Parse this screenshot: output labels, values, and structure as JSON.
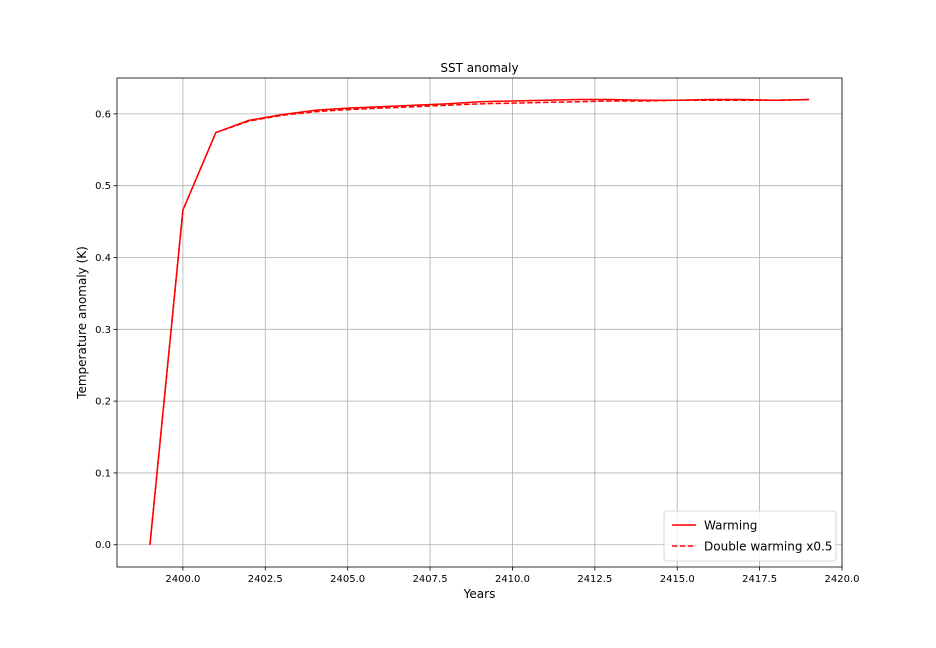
{
  "chart_data": {
    "type": "line",
    "title": "SST anomaly",
    "xlabel": "Years",
    "ylabel": "Temperature anomaly (K)",
    "xlim": [
      2398.0,
      2420.0
    ],
    "ylim": [
      -0.031,
      0.65
    ],
    "xticks": [
      2400.0,
      2402.5,
      2405.0,
      2407.5,
      2410.0,
      2412.5,
      2415.0,
      2417.5,
      2420.0
    ],
    "xtick_labels": [
      "2400.0",
      "2402.5",
      "2405.0",
      "2407.5",
      "2410.0",
      "2412.5",
      "2415.0",
      "2417.5",
      "2420.0"
    ],
    "yticks": [
      0.0,
      0.1,
      0.2,
      0.3,
      0.4,
      0.5,
      0.6
    ],
    "ytick_labels": [
      "0.0",
      "0.1",
      "0.2",
      "0.3",
      "0.4",
      "0.5",
      "0.6"
    ],
    "grid": true,
    "legend_position": "lower-right",
    "series": [
      {
        "name": "Warming",
        "style": "solid",
        "color": "#ff0000",
        "x": [
          2399,
          2400,
          2401,
          2402,
          2403,
          2404,
          2405,
          2406,
          2407,
          2408,
          2409,
          2410,
          2411,
          2412,
          2413,
          2414,
          2415,
          2416,
          2417,
          2418,
          2419
        ],
        "y": [
          0.0,
          0.466,
          0.574,
          0.591,
          0.599,
          0.605,
          0.608,
          0.61,
          0.612,
          0.614,
          0.617,
          0.618,
          0.619,
          0.62,
          0.62,
          0.619,
          0.619,
          0.62,
          0.62,
          0.619,
          0.62
        ]
      },
      {
        "name": "Double warming x0.5",
        "style": "dashed",
        "color": "#ff0000",
        "x": [
          2399,
          2400,
          2401,
          2402,
          2403,
          2404,
          2405,
          2406,
          2407,
          2408,
          2409,
          2410,
          2411,
          2412,
          2413,
          2414,
          2415,
          2416,
          2417,
          2418,
          2419
        ],
        "y": [
          0.0,
          0.466,
          0.574,
          0.59,
          0.598,
          0.603,
          0.606,
          0.608,
          0.61,
          0.612,
          0.614,
          0.615,
          0.616,
          0.617,
          0.618,
          0.618,
          0.619,
          0.619,
          0.619,
          0.619,
          0.62
        ]
      }
    ]
  }
}
